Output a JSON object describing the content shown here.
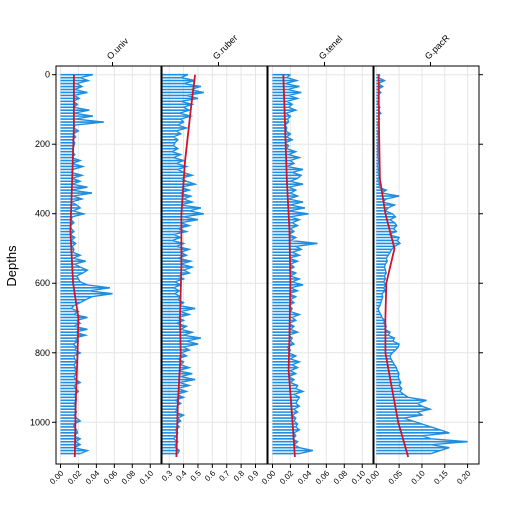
{
  "chart_data": {
    "type": "area",
    "ylabel": "Depths",
    "y_ticks": [
      0,
      200,
      400,
      600,
      800,
      1000
    ],
    "ylim": [
      1120,
      -25
    ],
    "grid": true,
    "colors": {
      "profile": "#1f8ee0",
      "trend": "#d0142c",
      "grid": "#e6e6e6",
      "axis": "#000000"
    },
    "panels": [
      {
        "name": "O.univ",
        "xlim": [
          -0.005,
          0.112
        ],
        "x_ticks": [
          0.0,
          0.02,
          0.04,
          0.06,
          0.08,
          0.1
        ],
        "x_tick_labels": [
          "0.00",
          "0.02",
          "0.04",
          "0.06",
          "0.08",
          "0.10"
        ],
        "values": [
          0.036,
          0.022,
          0.031,
          0.018,
          0.024,
          0.016,
          0.03,
          0.015,
          0.021,
          0.014,
          0.019,
          0.015,
          0.032,
          0.015,
          0.036,
          0.017,
          0.048,
          0.016,
          0.015,
          0.02,
          0.014,
          0.017,
          0.013,
          0.016,
          0.015,
          0.014,
          0.013,
          0.016,
          0.012,
          0.022,
          0.013,
          0.025,
          0.014,
          0.012,
          0.024,
          0.013,
          0.022,
          0.013,
          0.03,
          0.012,
          0.035,
          0.014,
          0.024,
          0.012,
          0.018,
          0.022,
          0.014,
          0.026,
          0.013,
          0.012,
          0.015,
          0.011,
          0.012,
          0.015,
          0.011,
          0.016,
          0.012,
          0.017,
          0.013,
          0.015,
          0.014,
          0.022,
          0.014,
          0.028,
          0.016,
          0.022,
          0.03,
          0.025,
          0.018,
          0.02,
          0.022,
          0.03,
          0.055,
          0.032,
          0.058,
          0.035,
          0.028,
          0.022,
          0.015,
          0.012,
          0.02,
          0.015,
          0.03,
          0.018,
          0.022,
          0.015,
          0.03,
          0.016,
          0.028,
          0.016,
          0.02,
          0.014,
          0.018,
          0.016,
          0.022,
          0.015,
          0.016,
          0.018,
          0.015,
          0.017,
          0.016,
          0.018,
          0.015,
          0.017,
          0.022,
          0.015,
          0.017,
          0.02,
          0.016,
          0.017,
          0.018,
          0.015,
          0.017,
          0.016,
          0.018,
          0.015,
          0.018,
          0.022,
          0.015,
          0.015,
          0.018,
          0.019,
          0.015,
          0.022,
          0.017,
          0.022,
          0.015,
          0.03,
          0.022
        ],
        "trend": [
          [
            0.015,
            0
          ],
          [
            0.015,
            150
          ],
          [
            0.013,
            300
          ],
          [
            0.011,
            450
          ],
          [
            0.014,
            600
          ],
          [
            0.02,
            700
          ],
          [
            0.019,
            800
          ],
          [
            0.017,
            950
          ],
          [
            0.016,
            1100
          ]
        ]
      },
      {
        "name": "G.ruber",
        "xlim": [
          0.25,
          0.98
        ],
        "x_ticks": [
          0.3,
          0.4,
          0.5,
          0.6,
          0.7,
          0.8,
          0.9
        ],
        "x_tick_labels": [
          "0.3",
          "0.4",
          "0.5",
          "0.6",
          "0.7",
          "0.8",
          "0.9"
        ],
        "values": [
          0.43,
          0.38,
          0.48,
          0.4,
          0.52,
          0.45,
          0.54,
          0.42,
          0.5,
          0.38,
          0.46,
          0.4,
          0.44,
          0.37,
          0.45,
          0.38,
          0.4,
          0.36,
          0.42,
          0.35,
          0.38,
          0.33,
          0.36,
          0.34,
          0.33,
          0.36,
          0.32,
          0.38,
          0.33,
          0.4,
          0.35,
          0.42,
          0.36,
          0.4,
          0.46,
          0.38,
          0.42,
          0.48,
          0.38,
          0.44,
          0.37,
          0.45,
          0.4,
          0.46,
          0.38,
          0.52,
          0.44,
          0.54,
          0.4,
          0.5,
          0.38,
          0.44,
          0.36,
          0.42,
          0.33,
          0.38,
          0.32,
          0.4,
          0.35,
          0.44,
          0.38,
          0.42,
          0.36,
          0.45,
          0.38,
          0.46,
          0.4,
          0.44,
          0.36,
          0.4,
          0.34,
          0.38,
          0.33,
          0.37,
          0.34,
          0.38,
          0.36,
          0.4,
          0.37,
          0.48,
          0.38,
          0.44,
          0.36,
          0.4,
          0.35,
          0.42,
          0.38,
          0.46,
          0.4,
          0.52,
          0.42,
          0.5,
          0.4,
          0.44,
          0.38,
          0.42,
          0.36,
          0.4,
          0.38,
          0.44,
          0.36,
          0.46,
          0.38,
          0.48,
          0.37,
          0.44,
          0.36,
          0.42,
          0.35,
          0.4,
          0.34,
          0.38,
          0.35,
          0.36,
          0.34,
          0.4,
          0.36,
          0.38,
          0.35,
          0.37,
          0.34,
          0.36,
          0.35,
          0.33,
          0.36,
          0.34,
          0.35,
          0.37,
          0.36
        ],
        "trend": [
          [
            0.48,
            0
          ],
          [
            0.45,
            100
          ],
          [
            0.41,
            250
          ],
          [
            0.385,
            400
          ],
          [
            0.385,
            550
          ],
          [
            0.375,
            700
          ],
          [
            0.38,
            800
          ],
          [
            0.36,
            950
          ],
          [
            0.35,
            1100
          ]
        ]
      },
      {
        "name": "G.tenel",
        "xlim": [
          -0.005,
          0.112
        ],
        "x_ticks": [
          0.0,
          0.02,
          0.04,
          0.06,
          0.08,
          0.1
        ],
        "x_tick_labels": [
          "0.00",
          "0.02",
          "0.04",
          "0.06",
          "0.08",
          "0.10"
        ],
        "values": [
          0.02,
          0.016,
          0.027,
          0.014,
          0.03,
          0.017,
          0.032,
          0.018,
          0.028,
          0.016,
          0.022,
          0.018,
          0.026,
          0.015,
          0.02,
          0.017,
          0.018,
          0.014,
          0.016,
          0.015,
          0.02,
          0.016,
          0.022,
          0.014,
          0.018,
          0.016,
          0.026,
          0.018,
          0.03,
          0.02,
          0.024,
          0.016,
          0.034,
          0.022,
          0.032,
          0.028,
          0.02,
          0.034,
          0.018,
          0.026,
          0.02,
          0.028,
          0.018,
          0.034,
          0.02,
          0.036,
          0.018,
          0.04,
          0.02,
          0.03,
          0.022,
          0.028,
          0.02,
          0.024,
          0.018,
          0.026,
          0.02,
          0.05,
          0.026,
          0.032,
          0.022,
          0.03,
          0.018,
          0.028,
          0.02,
          0.024,
          0.018,
          0.026,
          0.02,
          0.03,
          0.022,
          0.034,
          0.02,
          0.028,
          0.018,
          0.026,
          0.02,
          0.024,
          0.018,
          0.022,
          0.02,
          0.03,
          0.022,
          0.026,
          0.018,
          0.024,
          0.02,
          0.028,
          0.018,
          0.022,
          0.02,
          0.024,
          0.016,
          0.02,
          0.018,
          0.026,
          0.02,
          0.03,
          0.022,
          0.028,
          0.02,
          0.026,
          0.018,
          0.024,
          0.02,
          0.028,
          0.026,
          0.034,
          0.024,
          0.03,
          0.028,
          0.026,
          0.03,
          0.024,
          0.028,
          0.022,
          0.026,
          0.024,
          0.028,
          0.026,
          0.03,
          0.024,
          0.026,
          0.022,
          0.028,
          0.024,
          0.03,
          0.045,
          0.03
        ],
        "trend": [
          [
            0.012,
            0
          ],
          [
            0.014,
            150
          ],
          [
            0.016,
            300
          ],
          [
            0.019,
            450
          ],
          [
            0.02,
            600
          ],
          [
            0.019,
            750
          ],
          [
            0.018,
            850
          ],
          [
            0.021,
            950
          ],
          [
            0.025,
            1100
          ]
        ]
      },
      {
        "name": "G.pacR",
        "xlim": [
          -0.005,
          0.225
        ],
        "x_ticks": [
          0.0,
          0.05,
          0.1,
          0.15,
          0.2
        ],
        "x_tick_labels": [
          "0.00",
          "0.05",
          "0.10",
          "0.15",
          "0.20"
        ],
        "values": [
          0.008,
          0.004,
          0.018,
          0.004,
          0.014,
          0.003,
          0.01,
          0.003,
          0.006,
          0.004,
          0.003,
          0.008,
          0.004,
          0.01,
          0.003,
          0.007,
          0.004,
          0.003,
          0.006,
          0.004,
          0.003,
          0.005,
          0.004,
          0.004,
          0.003,
          0.003,
          0.004,
          0.003,
          0.004,
          0.005,
          0.004,
          0.003,
          0.006,
          0.003,
          0.008,
          0.004,
          0.004,
          0.01,
          0.004,
          0.022,
          0.012,
          0.05,
          0.022,
          0.014,
          0.04,
          0.026,
          0.02,
          0.035,
          0.042,
          0.03,
          0.04,
          0.045,
          0.038,
          0.044,
          0.026,
          0.05,
          0.046,
          0.052,
          0.04,
          0.034,
          0.03,
          0.026,
          0.022,
          0.024,
          0.02,
          0.018,
          0.02,
          0.022,
          0.018,
          0.02,
          0.016,
          0.022,
          0.016,
          0.02,
          0.012,
          0.014,
          0.012,
          0.01,
          0.008,
          0.004,
          0.006,
          0.01,
          0.012,
          0.018,
          0.016,
          0.022,
          0.018,
          0.03,
          0.026,
          0.04,
          0.036,
          0.05,
          0.048,
          0.042,
          0.035,
          0.03,
          0.032,
          0.036,
          0.04,
          0.044,
          0.046,
          0.05,
          0.048,
          0.05,
          0.054,
          0.05,
          0.056,
          0.052,
          0.06,
          0.07,
          0.11,
          0.09,
          0.1,
          0.118,
          0.09,
          0.1,
          0.06,
          0.08,
          0.1,
          0.12,
          0.14,
          0.16,
          0.1,
          0.12,
          0.2,
          0.12,
          0.16,
          0.14,
          0.12
        ],
        "trend": [
          [
            0.005,
            0
          ],
          [
            0.006,
            150
          ],
          [
            0.008,
            300
          ],
          [
            0.02,
            400
          ],
          [
            0.04,
            500
          ],
          [
            0.022,
            600
          ],
          [
            0.02,
            700
          ],
          [
            0.02,
            800
          ],
          [
            0.034,
            900
          ],
          [
            0.048,
            1000
          ],
          [
            0.07,
            1100
          ]
        ]
      }
    ]
  }
}
